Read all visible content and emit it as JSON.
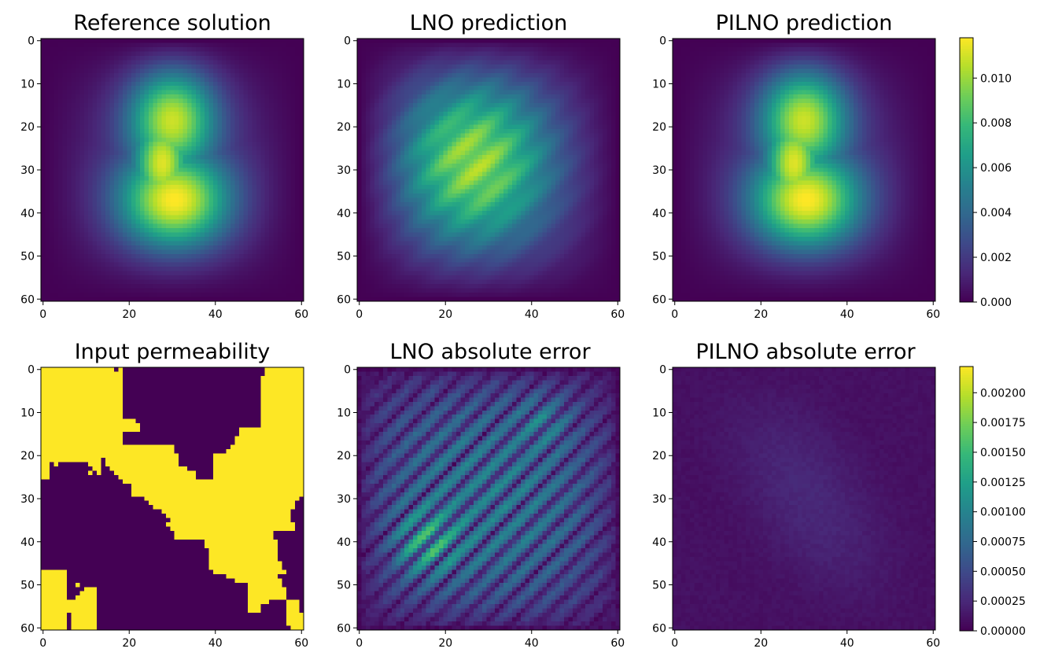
{
  "chart_data": [
    {
      "type": "heatmap",
      "title": "Reference solution",
      "grid_size": 61,
      "x_ticks": [
        0,
        20,
        40,
        60
      ],
      "y_ticks": [
        0,
        10,
        20,
        30,
        40,
        50,
        60
      ],
      "value_range": [
        0,
        0.0118
      ],
      "field": "smooth_peanut"
    },
    {
      "type": "heatmap",
      "title": "LNO prediction",
      "grid_size": 61,
      "x_ticks": [
        0,
        20,
        40,
        60
      ],
      "y_ticks": [
        0,
        10,
        20,
        30,
        40,
        50,
        60
      ],
      "value_range": [
        0,
        0.0118
      ],
      "field": "striped_prediction"
    },
    {
      "type": "heatmap",
      "title": "PILNO prediction",
      "grid_size": 61,
      "x_ticks": [
        0,
        20,
        40,
        60
      ],
      "y_ticks": [
        0,
        10,
        20,
        30,
        40,
        50,
        60
      ],
      "value_range": [
        0,
        0.0118
      ],
      "field": "smooth_peanut",
      "colorbar": {
        "min": 0,
        "max": 0.0118,
        "ticks": [
          0.0,
          0.002,
          0.004,
          0.006,
          0.008,
          0.01
        ],
        "tick_labels": [
          "0.000",
          "0.002",
          "0.004",
          "0.006",
          "0.008",
          "0.010"
        ]
      }
    },
    {
      "type": "heatmap",
      "title": "Input permeability",
      "grid_size": 61,
      "x_ticks": [
        0,
        20,
        40,
        60
      ],
      "y_ticks": [
        0,
        10,
        20,
        30,
        40,
        50,
        60
      ],
      "value_range": [
        0,
        1
      ],
      "field": "binary_permeability"
    },
    {
      "type": "heatmap",
      "title": "LNO absolute error",
      "grid_size": 61,
      "x_ticks": [
        0,
        20,
        40,
        60
      ],
      "y_ticks": [
        0,
        10,
        20,
        30,
        40,
        50,
        60
      ],
      "value_range": [
        0,
        0.00222
      ],
      "field": "striped_error"
    },
    {
      "type": "heatmap",
      "title": "PILNO absolute error",
      "grid_size": 61,
      "x_ticks": [
        0,
        20,
        40,
        60
      ],
      "y_ticks": [
        0,
        10,
        20,
        30,
        40,
        50,
        60
      ],
      "value_range": [
        0,
        0.00222
      ],
      "field": "low_error",
      "colorbar": {
        "min": 0,
        "max": 0.00222,
        "ticks": [
          0.0,
          0.00025,
          0.0005,
          0.00075,
          0.001,
          0.00125,
          0.0015,
          0.00175,
          0.002
        ],
        "tick_labels": [
          "0.00000",
          "0.00025",
          "0.00050",
          "0.00075",
          "0.00100",
          "0.00125",
          "0.00150",
          "0.00175",
          "0.00200"
        ]
      }
    }
  ],
  "colors": {
    "viridis": [
      "#440154",
      "#482878",
      "#3e4989",
      "#31688e",
      "#26828e",
      "#1f9e89",
      "#35b779",
      "#6ece58",
      "#b5de2b",
      "#fde725"
    ]
  }
}
